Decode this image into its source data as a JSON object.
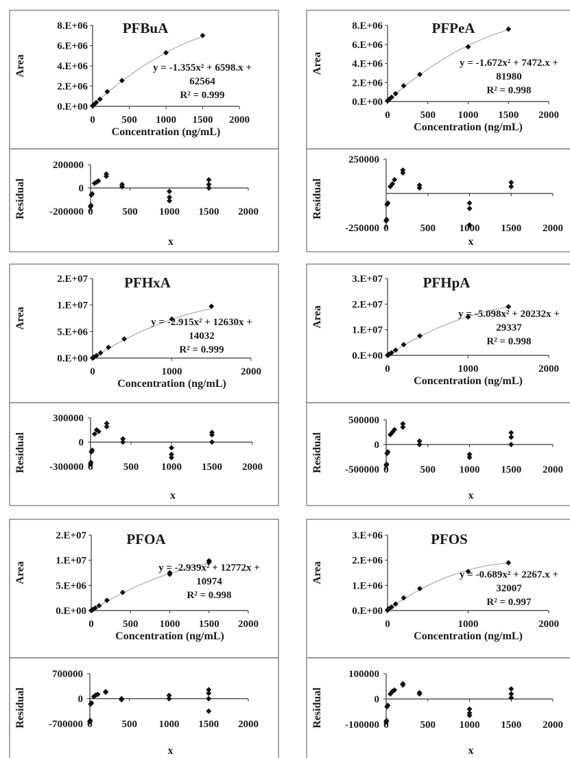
{
  "chart_data": [
    {
      "type": "scatter",
      "title": "PFBuA",
      "xlabel": "Concentration (ng/mL)",
      "ylabel": "Area",
      "x_ticks": [
        "0",
        "500",
        "1000",
        "1500",
        "2000"
      ],
      "y_ticks": [
        "0.E+00",
        "2.E+06",
        "4.E+06",
        "6.E+06",
        "8.E+06"
      ],
      "xlim": [
        0,
        2000
      ],
      "ylim": [
        0,
        8000000
      ],
      "trendline": {
        "a": -1.355,
        "b": 6598,
        "c": 62564
      },
      "equation": [
        "y = -1.355x² + 6598.x +",
        "62564",
        "R² = 0.999"
      ],
      "points": [
        [
          0,
          40000
        ],
        [
          5,
          90000
        ],
        [
          10,
          120000
        ],
        [
          20,
          180000
        ],
        [
          50,
          380000
        ],
        [
          100,
          700000
        ],
        [
          200,
          1450000
        ],
        [
          400,
          2550000
        ],
        [
          1000,
          5300000
        ],
        [
          1500,
          7000000
        ]
      ],
      "residual": {
        "xlabel": "x",
        "ylabel": "Residual",
        "x_ticks": [
          "0",
          "500",
          "1000",
          "1500",
          "2000"
        ],
        "y_ticks": [
          "200000",
          "0",
          "-200000"
        ],
        "ylim": [
          -200000,
          200000
        ],
        "points": [
          [
            0,
            -160000
          ],
          [
            5,
            -150000
          ],
          [
            10,
            -60000
          ],
          [
            20,
            -50000
          ],
          [
            50,
            40000
          ],
          [
            75,
            50000
          ],
          [
            100,
            60000
          ],
          [
            200,
            100000
          ],
          [
            200,
            120000
          ],
          [
            400,
            10000
          ],
          [
            400,
            30000
          ],
          [
            1000,
            -30000
          ],
          [
            1000,
            -80000
          ],
          [
            1000,
            -110000
          ],
          [
            1500,
            70000
          ],
          [
            1500,
            30000
          ],
          [
            1500,
            0
          ]
        ]
      }
    },
    {
      "type": "scatter",
      "title": "PFPeA",
      "xlabel": "Concentration (ng/mL)",
      "ylabel": "Area",
      "x_ticks": [
        "0",
        "500",
        "1000",
        "1500",
        "2000"
      ],
      "y_ticks": [
        "0.E+00",
        "2.E+06",
        "4.E+06",
        "6.E+06",
        "8.E+06"
      ],
      "xlim": [
        0,
        2000
      ],
      "ylim": [
        0,
        8000000
      ],
      "trendline": {
        "a": -1.672,
        "b": 7472,
        "c": 81980
      },
      "equation": [
        "y = -1.672x² + 7472.x +",
        "81980",
        "R² = 0.998"
      ],
      "points": [
        [
          0,
          60000
        ],
        [
          5,
          110000
        ],
        [
          10,
          150000
        ],
        [
          20,
          230000
        ],
        [
          50,
          450000
        ],
        [
          100,
          830000
        ],
        [
          200,
          1650000
        ],
        [
          400,
          2850000
        ],
        [
          1000,
          5750000
        ],
        [
          1500,
          7600000
        ]
      ],
      "residual": {
        "xlabel": "x",
        "ylabel": "Residual",
        "x_ticks": [
          "0",
          "500",
          "1000",
          "1500",
          "2000"
        ],
        "y_ticks": [
          "250000",
          "-250000"
        ],
        "ylim": [
          -250000,
          250000
        ],
        "points": [
          [
            0,
            -200000
          ],
          [
            5,
            -190000
          ],
          [
            10,
            -80000
          ],
          [
            20,
            -70000
          ],
          [
            50,
            50000
          ],
          [
            75,
            70000
          ],
          [
            100,
            100000
          ],
          [
            200,
            150000
          ],
          [
            200,
            170000
          ],
          [
            400,
            40000
          ],
          [
            400,
            60000
          ],
          [
            1000,
            -70000
          ],
          [
            1000,
            -110000
          ],
          [
            1000,
            -230000
          ],
          [
            1500,
            80000
          ],
          [
            1500,
            50000
          ]
        ]
      }
    },
    {
      "type": "scatter",
      "title": "PFHxA",
      "xlabel": "Concentration (ng/mL)",
      "ylabel": "Area",
      "x_ticks": [
        "0",
        "1000",
        "2000"
      ],
      "y_ticks": [
        "0.E+00",
        "5.E+06",
        "1.E+07",
        "2.E+07"
      ],
      "xlim": [
        0,
        2000
      ],
      "ylim": [
        0,
        20000000
      ],
      "trendline": {
        "a": -2.915,
        "b": 12630,
        "c": 14032
      },
      "equation": [
        "y = -2.915x² + 12630x +",
        "14032",
        "R² = 0.999"
      ],
      "points": [
        [
          0,
          30000
        ],
        [
          5,
          80000
        ],
        [
          10,
          140000
        ],
        [
          20,
          260000
        ],
        [
          50,
          620000
        ],
        [
          100,
          1300000
        ],
        [
          200,
          2700000
        ],
        [
          400,
          4800000
        ],
        [
          1000,
          9800000
        ],
        [
          1500,
          13000000
        ]
      ],
      "residual": {
        "xlabel": "x",
        "ylabel": "Residual",
        "x_ticks": [
          "0",
          "500",
          "1000",
          "1500",
          "2000"
        ],
        "y_ticks": [
          "300000",
          "0",
          "-300000"
        ],
        "ylim": [
          -300000,
          300000
        ],
        "points": [
          [
            0,
            -270000
          ],
          [
            5,
            -250000
          ],
          [
            10,
            -120000
          ],
          [
            20,
            -100000
          ],
          [
            50,
            100000
          ],
          [
            75,
            150000
          ],
          [
            100,
            130000
          ],
          [
            200,
            190000
          ],
          [
            200,
            230000
          ],
          [
            400,
            40000
          ],
          [
            400,
            0
          ],
          [
            1000,
            -70000
          ],
          [
            1000,
            -150000
          ],
          [
            1000,
            -190000
          ],
          [
            1500,
            120000
          ],
          [
            1500,
            90000
          ],
          [
            1500,
            0
          ]
        ]
      }
    },
    {
      "type": "scatter",
      "title": "PFHpA",
      "xlabel": "Concentration (ng/mL)",
      "ylabel": "Area",
      "x_ticks": [
        "0",
        "1000",
        "2000"
      ],
      "y_ticks": [
        "0.E+00",
        "1.E+07",
        "2.E+07",
        "3.E+07"
      ],
      "xlim": [
        0,
        2000
      ],
      "ylim": [
        0,
        30000000
      ],
      "trendline": {
        "a": -5.098,
        "b": 20232,
        "c": 29337
      },
      "equation": [
        "y = -5.098x² + 20232x +",
        "29337",
        "R² = 0.998"
      ],
      "points": [
        [
          0,
          50000
        ],
        [
          5,
          150000
        ],
        [
          10,
          250000
        ],
        [
          20,
          450000
        ],
        [
          50,
          1000000
        ],
        [
          100,
          2000000
        ],
        [
          200,
          4200000
        ],
        [
          400,
          7600000
        ],
        [
          1000,
          15000000
        ],
        [
          1500,
          19000000
        ]
      ],
      "residual": {
        "xlabel": "x",
        "ylabel": "Residual",
        "x_ticks": [
          "0",
          "500",
          "1000",
          "1500",
          "2000"
        ],
        "y_ticks": [
          "500000",
          "0",
          "-500000"
        ],
        "ylim": [
          -500000,
          500000
        ],
        "points": [
          [
            0,
            -420000
          ],
          [
            5,
            -400000
          ],
          [
            10,
            -180000
          ],
          [
            20,
            -150000
          ],
          [
            50,
            200000
          ],
          [
            75,
            250000
          ],
          [
            100,
            300000
          ],
          [
            200,
            350000
          ],
          [
            200,
            420000
          ],
          [
            400,
            70000
          ],
          [
            400,
            0
          ],
          [
            1000,
            -200000
          ],
          [
            1000,
            -260000
          ],
          [
            1500,
            240000
          ],
          [
            1500,
            150000
          ],
          [
            1500,
            0
          ]
        ]
      }
    },
    {
      "type": "scatter",
      "title": "PFOA",
      "xlabel": "Concentration (ng/mL)",
      "ylabel": "Area",
      "x_ticks": [
        "0",
        "500",
        "1000",
        "1500",
        "2000"
      ],
      "y_ticks": [
        "0.E+00",
        "5.E+06",
        "1.E+07",
        "2.E+07"
      ],
      "xlim": [
        0,
        2000
      ],
      "ylim": [
        0,
        20000000
      ],
      "trendline": {
        "a": -2.939,
        "b": 12772,
        "c": 10974
      },
      "equation": [
        "y = -2.939x² + 12772x +",
        "10974",
        "R² = 0.998"
      ],
      "points": [
        [
          0,
          30000
        ],
        [
          5,
          80000
        ],
        [
          10,
          130000
        ],
        [
          20,
          250000
        ],
        [
          50,
          650000
        ],
        [
          100,
          1300000
        ],
        [
          200,
          2700000
        ],
        [
          400,
          4800000
        ],
        [
          1000,
          10000000
        ],
        [
          1000,
          9600000
        ],
        [
          1500,
          13200000
        ],
        [
          1500,
          12800000
        ]
      ],
      "residual": {
        "xlabel": "x",
        "ylabel": "Residual",
        "x_ticks": [
          "0",
          "500",
          "1000",
          "1500",
          "2000"
        ],
        "y_ticks": [
          "700000",
          "0",
          "-700000"
        ],
        "ylim": [
          -700000,
          700000
        ],
        "points": [
          [
            0,
            -640000
          ],
          [
            5,
            -610000
          ],
          [
            10,
            -150000
          ],
          [
            20,
            -120000
          ],
          [
            50,
            60000
          ],
          [
            75,
            100000
          ],
          [
            100,
            120000
          ],
          [
            200,
            180000
          ],
          [
            200,
            200000
          ],
          [
            400,
            -30000
          ],
          [
            400,
            0
          ],
          [
            1000,
            90000
          ],
          [
            1000,
            0
          ],
          [
            1500,
            250000
          ],
          [
            1500,
            150000
          ],
          [
            1500,
            0
          ],
          [
            1500,
            -350000
          ]
        ]
      }
    },
    {
      "type": "scatter",
      "title": "PFOS",
      "xlabel": "Concentration (ng/mL)",
      "ylabel": "Area",
      "x_ticks": [
        "0",
        "1000",
        "2000"
      ],
      "y_ticks": [
        "0.E+00",
        "1.E+06",
        "2.E+06",
        "3.E+06"
      ],
      "xlim": [
        0,
        2000
      ],
      "ylim": [
        0,
        3000000
      ],
      "trendline": {
        "a": -0.689,
        "b": 2267,
        "c": 32007
      },
      "equation": [
        "y = -0.689x² + 2267.x +",
        "32007",
        "R² = 0.997"
      ],
      "points": [
        [
          0,
          10000
        ],
        [
          5,
          40000
        ],
        [
          10,
          60000
        ],
        [
          20,
          80000
        ],
        [
          50,
          140000
        ],
        [
          100,
          260000
        ],
        [
          200,
          500000
        ],
        [
          400,
          870000
        ],
        [
          1000,
          1550000
        ],
        [
          1500,
          1900000
        ]
      ],
      "residual": {
        "xlabel": "x",
        "ylabel": "Residual",
        "x_ticks": [
          "0",
          "500",
          "1000",
          "1500",
          "2000"
        ],
        "y_ticks": [
          "100000",
          "0",
          "-100000"
        ],
        "ylim": [
          -100000,
          100000
        ],
        "points": [
          [
            0,
            -90000
          ],
          [
            5,
            -85000
          ],
          [
            10,
            -30000
          ],
          [
            20,
            -25000
          ],
          [
            50,
            20000
          ],
          [
            75,
            30000
          ],
          [
            100,
            35000
          ],
          [
            200,
            55000
          ],
          [
            200,
            60000
          ],
          [
            400,
            20000
          ],
          [
            400,
            25000
          ],
          [
            1000,
            -40000
          ],
          [
            1000,
            -55000
          ],
          [
            1000,
            -65000
          ],
          [
            1500,
            40000
          ],
          [
            1500,
            20000
          ],
          [
            1500,
            5000
          ]
        ]
      }
    }
  ]
}
